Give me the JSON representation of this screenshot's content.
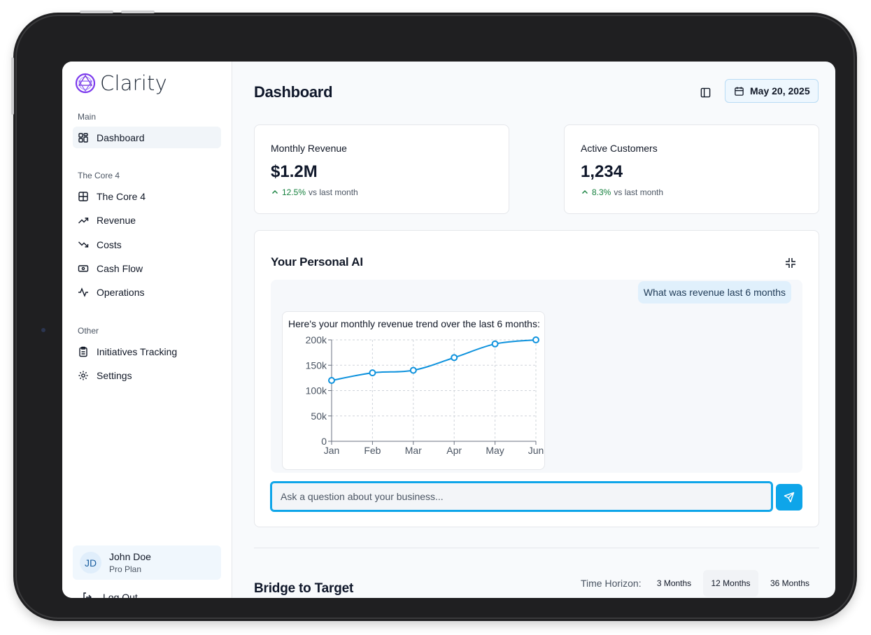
{
  "app": {
    "name": "Clarity"
  },
  "sidebar": {
    "sections": [
      {
        "label": "Main",
        "items": [
          {
            "label": "Dashboard",
            "icon": "grid-icon",
            "active": true
          }
        ]
      },
      {
        "label": "The Core 4",
        "items": [
          {
            "label": "The Core 4",
            "icon": "table-icon"
          },
          {
            "label": "Revenue",
            "icon": "trending-up-icon"
          },
          {
            "label": "Costs",
            "icon": "trending-down-icon"
          },
          {
            "label": "Cash Flow",
            "icon": "banknote-icon"
          },
          {
            "label": "Operations",
            "icon": "activity-icon"
          }
        ]
      },
      {
        "label": "Other",
        "items": [
          {
            "label": "Initiatives Tracking",
            "icon": "clipboard-icon"
          },
          {
            "label": "Settings",
            "icon": "gear-icon"
          }
        ]
      }
    ],
    "user": {
      "initials": "JD",
      "name": "John Doe",
      "plan": "Pro Plan"
    },
    "logout_label": "Log Out"
  },
  "header": {
    "title": "Dashboard",
    "date_label": "May 20, 2025"
  },
  "metrics": [
    {
      "label": "Monthly Revenue",
      "value": "$1.2M",
      "change": "12.5%",
      "suffix": "vs last month"
    },
    {
      "label": "Active Customers",
      "value": "1,234",
      "change": "8.3%",
      "suffix": "vs last month"
    }
  ],
  "ai": {
    "title": "Your Personal AI",
    "user_message": "What was revenue last 6 months",
    "bot_message": "Here's your monthly revenue trend over the last 6 months:",
    "input_placeholder": "Ask a question about your business..."
  },
  "chart_data": {
    "type": "line",
    "categories": [
      "Jan",
      "Feb",
      "Mar",
      "Apr",
      "May",
      "Jun"
    ],
    "series": [
      {
        "values": [
          120000,
          135000,
          140000,
          165000,
          192000,
          200000
        ]
      }
    ],
    "y_ticks": [
      "0",
      "50k",
      "100k",
      "150k",
      "200k"
    ],
    "ylim": [
      0,
      200000
    ],
    "grid": true,
    "color": "#0e92dd"
  },
  "bridge": {
    "title": "Bridge to Target",
    "horizon_label": "Time Horizon:",
    "options": [
      "3 Months",
      "12 Months",
      "36 Months"
    ],
    "selected": "12 Months"
  },
  "colors": {
    "accent": "#0ea5e9",
    "positive": "#15803d",
    "brand": "#7c3aed"
  }
}
